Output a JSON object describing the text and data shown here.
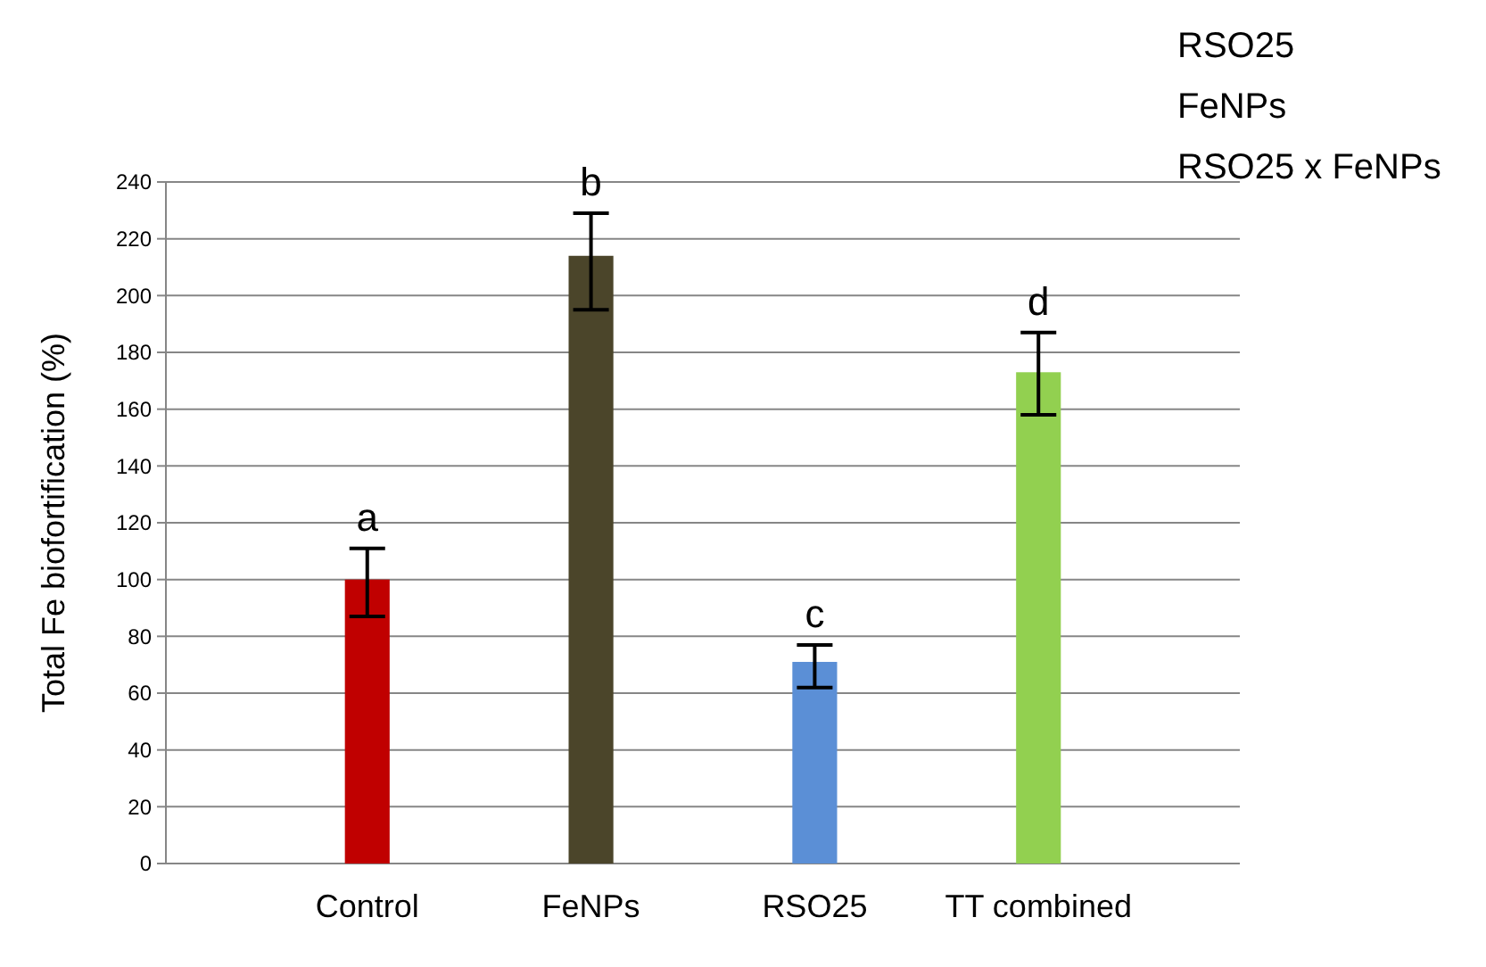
{
  "chart_data": {
    "type": "bar",
    "ylabel": "Total Fe biofortification  (%)",
    "categories": [
      "Control",
      "FeNPs",
      "RSO25",
      "TT combined"
    ],
    "values": [
      100,
      214,
      71,
      173
    ],
    "colors": [
      "#c00000",
      "#4b452a",
      "#5b8fd6",
      "#92d050"
    ],
    "errors": [
      [
        87,
        111
      ],
      [
        195,
        229
      ],
      [
        62,
        77
      ],
      [
        158,
        187
      ]
    ],
    "ylim": [
      0,
      240
    ],
    "yticks": [
      0,
      20,
      40,
      60,
      80,
      100,
      120,
      140,
      160,
      180,
      200,
      220,
      240
    ],
    "grid": "y",
    "annotations": [
      {
        "text": "a",
        "x": "Control",
        "y": 111
      },
      {
        "text": "b",
        "x": "FeNPs",
        "y": 229
      },
      {
        "text": "c",
        "x": "RSO25",
        "y": 77
      },
      {
        "text": "d",
        "x": "TT combined",
        "y": 187
      },
      "RSO25",
      "FeNPs",
      "RSO25 x FeNPs"
    ]
  }
}
